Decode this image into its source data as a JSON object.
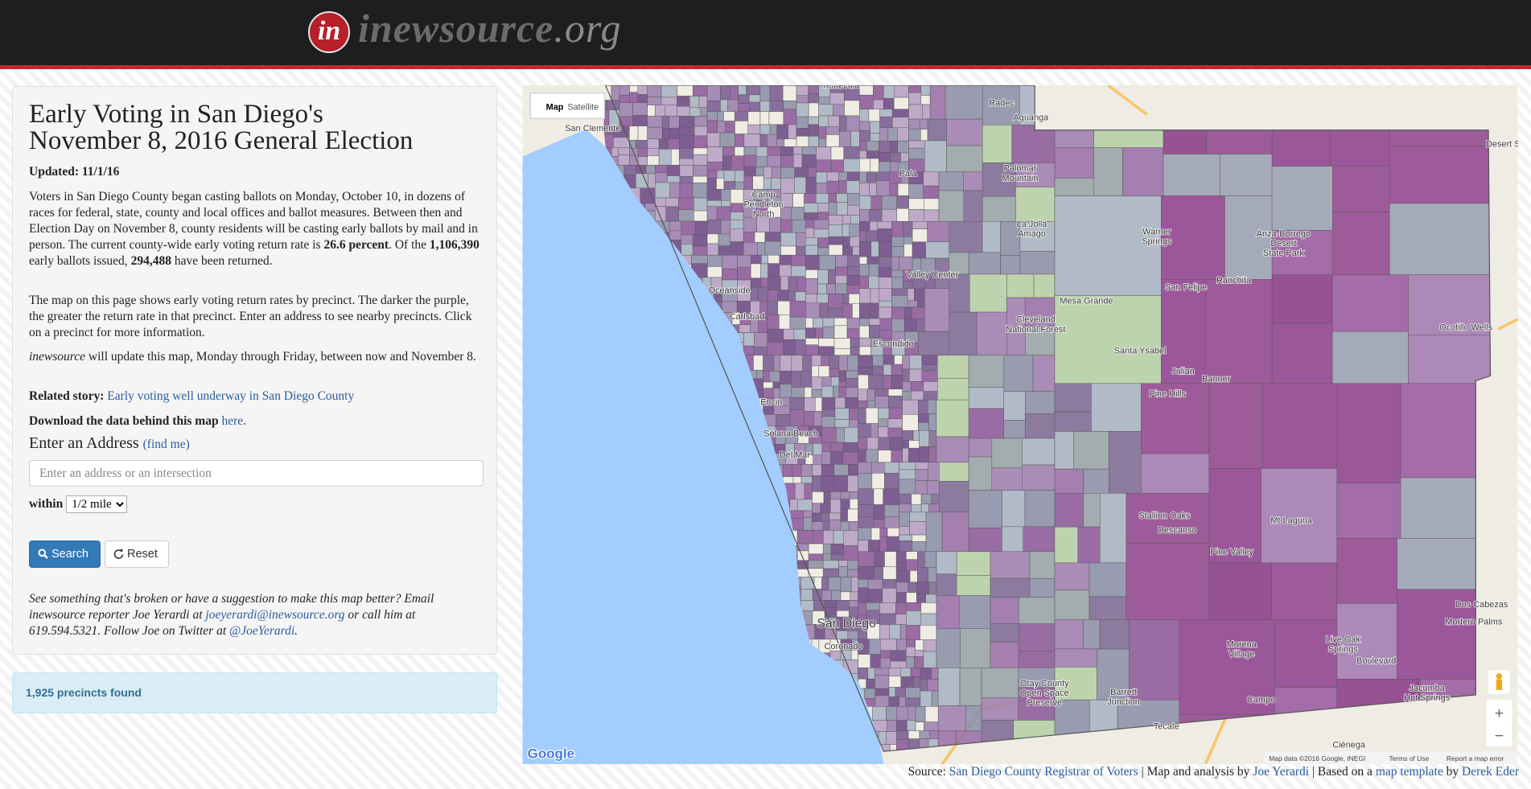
{
  "header": {
    "logo_mark": "in",
    "site": "inewsource",
    "tld": ".org"
  },
  "sidebar": {
    "title_lines": [
      "Early Voting in San Diego's",
      "November 8, 2016 General Election"
    ],
    "updated_label": "Updated:",
    "updated": "11/1/16",
    "intro": [
      "Voters in San Diego County began casting ballots on Monday, October 10, in dozens of races for federal, state, county and local offices and ballot measures. Between then and Election Day on November 8, county residents will be casting early ballots by mail and in person. The current county-wide early voting return rate is ",
      "26.6 percent",
      ". Of the ",
      "1,106,390",
      " early ballots issued, ",
      "294,488",
      " have been returned."
    ],
    "map_note": "The map on this page shows early voting return rates by precinct. The darker the purple, the greater the return rate in that precinct. Enter an address to see nearby precincts. Click on a precinct for more information.",
    "update_note": [
      "inewsource",
      " will update this map, Monday through Friday, between now and November 8."
    ],
    "related_label": "Related story:",
    "related_link": "Early voting well underway in San Diego County",
    "download": [
      "Download the data behind this map ",
      "here",
      "."
    ],
    "address_heading": "Enter an Address",
    "find_me": "(find me)",
    "address_placeholder": "Enter an address or an intersection",
    "within_label": "within",
    "radius": "1/2 mile",
    "search_button": "Search",
    "reset_button": "Reset",
    "feedback": [
      "See something that's broken or have a suggestion to make this map better? Email inewsource reporter Joe Yerardi at ",
      "joeyerardi@inewsource.org",
      " or call him at 619.594.5321. Follow Joe on Twitter at ",
      "@JoeYerardi",
      "."
    ],
    "results": "1,925 precincts found"
  },
  "map": {
    "map_button": "Map",
    "satellite_button": "Satellite",
    "zoom_in": "+",
    "zoom_out": "−",
    "logo": "Google",
    "attribution": "Map data ©2016 Google, INEGI",
    "terms": "Terms of Use",
    "report": "Report a map error",
    "places": [
      [
        "Temecula"
      ],
      [
        "Radec"
      ],
      [
        "Aguanga"
      ],
      [
        "San Clemente"
      ],
      [
        "Camp",
        "Pendleton",
        "North"
      ],
      [
        "Oceanside"
      ],
      [
        "Carlsbad"
      ],
      [
        "Escondido"
      ],
      [
        "Valley Center"
      ],
      [
        "Pala"
      ],
      [
        "Palomar",
        "Mountain"
      ],
      [
        "La Jolla",
        "Amago"
      ],
      [
        "Warner",
        "Springs"
      ],
      [
        "Anza-Borrego",
        "Desert",
        "State Park"
      ],
      [
        "Ranchita"
      ],
      [
        "San Felipe"
      ],
      [
        "Mesa Grande"
      ],
      [
        "Cleveland",
        "National Forest"
      ],
      [
        "Ocotillo Wells"
      ],
      [
        "Santa Ysabel"
      ],
      [
        "Julian"
      ],
      [
        "Banner"
      ],
      [
        "Pine Hills"
      ],
      [
        "Encin"
      ],
      [
        "Solana Beach"
      ],
      [
        "Del Mar"
      ],
      [
        "Stallion Oaks"
      ],
      [
        "Descanso"
      ],
      [
        "Mt Laguna"
      ],
      [
        "Pine Valley"
      ],
      [
        "San Diego"
      ],
      [
        "Coronado"
      ],
      [
        "Otay County",
        "Open Space",
        "Preserve"
      ],
      [
        "Barrett",
        "Junction"
      ],
      [
        "Morena",
        "Village"
      ],
      [
        "Campo"
      ],
      [
        "Live Oak",
        "Springs"
      ],
      [
        "Boulevard"
      ],
      [
        "Jacumba",
        "Hot Springs"
      ],
      [
        "Dos Cabezas"
      ],
      [
        "Mortero Palms"
      ],
      [
        "Tecate"
      ],
      [
        "Ciénega"
      ],
      [
        "Desert S"
      ]
    ]
  },
  "source": [
    "Source: ",
    "San Diego County Registrar of Voters",
    " | Map and analysis by ",
    "Joe Yerardi",
    " | Based on a ",
    "map template",
    " by ",
    "Derek Eder"
  ]
}
